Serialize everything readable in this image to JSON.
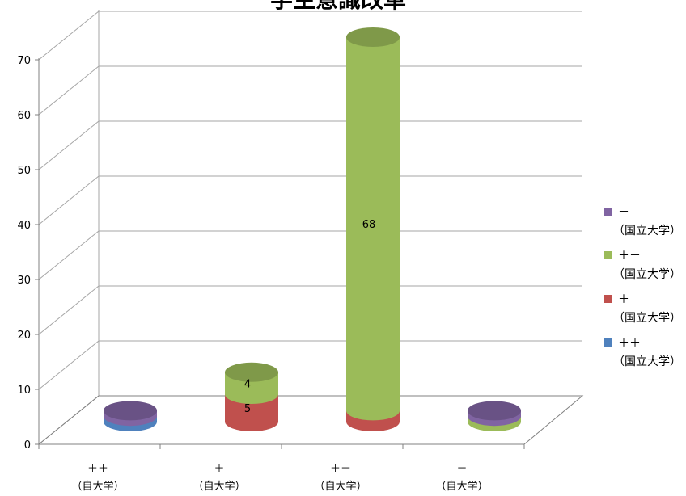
{
  "chart_data": {
    "type": "bar",
    "style": "3d-stacked-cylinder",
    "title": "学生意識改革",
    "categories": [
      [
        "＋＋",
        "（自大学）"
      ],
      [
        "＋",
        "（自大学）"
      ],
      [
        "＋－",
        "（自大学）"
      ],
      [
        "－",
        "（自大学）"
      ]
    ],
    "ylim": [
      0,
      70
    ],
    "yticks": [
      0,
      10,
      20,
      30,
      40,
      50,
      60,
      70
    ],
    "grid": true,
    "legend_position": "right",
    "series": [
      {
        "name": [
          "＋＋",
          "（国立大学）"
        ],
        "color": "#4f81bd",
        "values": [
          1,
          0,
          0,
          0
        ]
      },
      {
        "name": [
          "＋",
          "（国立大学）"
        ],
        "color": "#c0504d",
        "values": [
          0,
          5,
          2,
          0
        ]
      },
      {
        "name": [
          "＋－",
          "（国立大学）"
        ],
        "color": "#9bbb59",
        "values": [
          0,
          4,
          68,
          1
        ]
      },
      {
        "name": [
          "－",
          "（国立大学）"
        ],
        "color": "#8064a2",
        "values": [
          1,
          0,
          0,
          1
        ]
      }
    ],
    "data_labels": [
      {
        "series": 1,
        "category": 1,
        "text": "5"
      },
      {
        "series": 2,
        "category": 1,
        "text": "4"
      },
      {
        "series": 2,
        "category": 2,
        "text": "68"
      }
    ]
  }
}
